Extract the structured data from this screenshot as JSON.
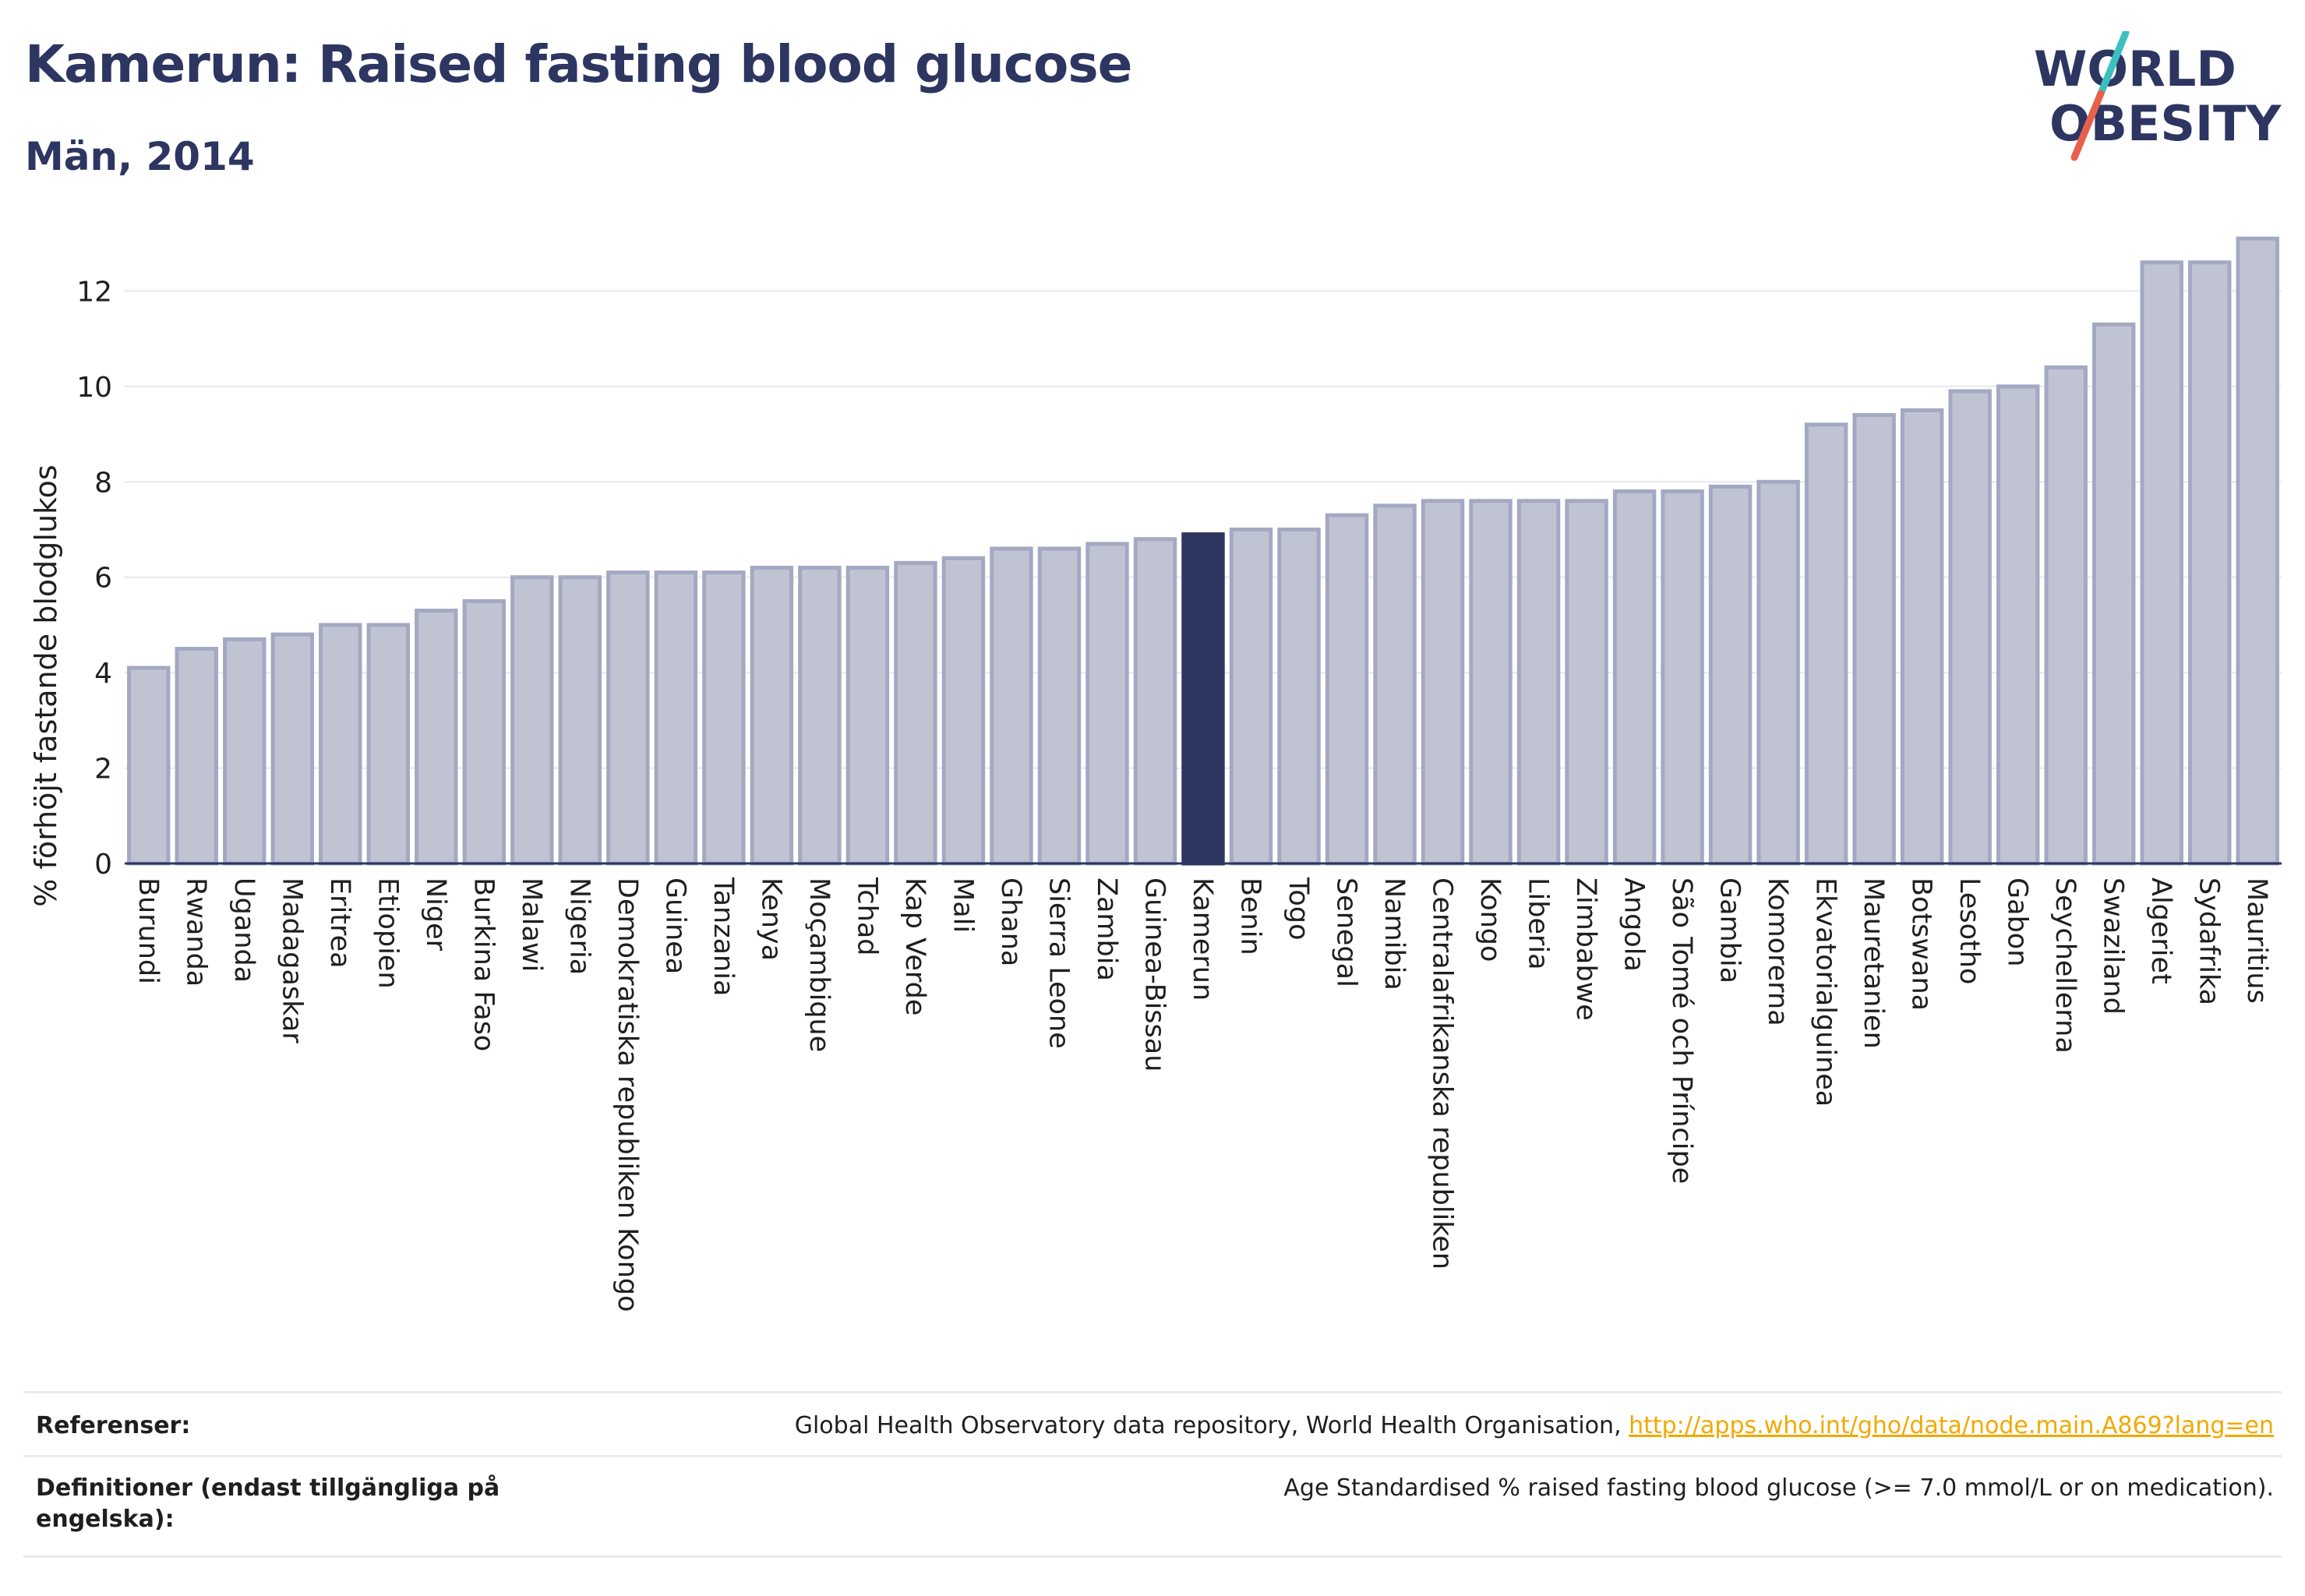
{
  "header": {
    "title": "Kamerun: Raised fasting blood glucose",
    "subtitle": "Män, 2014"
  },
  "logo": {
    "line1": "WORLD",
    "line2": "OBESITY",
    "text_color": "#2d3561",
    "slash_top_color": "#3cbfbf",
    "slash_bottom_color": "#e8604c"
  },
  "chart_data": {
    "type": "bar",
    "ylabel": "% förhöjt fastande blodglukos",
    "xlabel": "",
    "ylim": [
      0,
      13.2
    ],
    "yticks": [
      0,
      2,
      4,
      6,
      8,
      10,
      12
    ],
    "grid": true,
    "highlight": "Kamerun",
    "colors": {
      "bar": "#c0c4d2",
      "bar_border": "#a3a9c2",
      "highlight": "#2d3561",
      "grid": "#e6e8ef",
      "axis": "#2d3561"
    },
    "categories": [
      "Burundi",
      "Rwanda",
      "Uganda",
      "Madagaskar",
      "Eritrea",
      "Etiopien",
      "Niger",
      "Burkina Faso",
      "Malawi",
      "Nigeria",
      "Demokratiska republiken Kongo",
      "Guinea",
      "Tanzania",
      "Kenya",
      "Moçambique",
      "Tchad",
      "Kap Verde",
      "Mali",
      "Ghana",
      "Sierra Leone",
      "Zambia",
      "Guinea-Bissau",
      "Kamerun",
      "Benin",
      "Togo",
      "Senegal",
      "Namibia",
      "Centralafrikanska republiken",
      "Kongo",
      "Liberia",
      "Zimbabwe",
      "Angola",
      "São Tomé och Príncipe",
      "Gambia",
      "Komorerna",
      "Ekvatorialguinea",
      "Mauretanien",
      "Botswana",
      "Lesotho",
      "Gabon",
      "Seychellerna",
      "Swaziland",
      "Algeriet",
      "Sydafrika",
      "Mauritius"
    ],
    "values": [
      4.1,
      4.5,
      4.7,
      4.8,
      5.0,
      5.0,
      5.3,
      5.5,
      6.0,
      6.0,
      6.1,
      6.1,
      6.1,
      6.2,
      6.2,
      6.2,
      6.3,
      6.4,
      6.6,
      6.6,
      6.7,
      6.8,
      6.9,
      7.0,
      7.0,
      7.3,
      7.5,
      7.6,
      7.6,
      7.6,
      7.6,
      7.8,
      7.8,
      7.9,
      8.0,
      9.2,
      9.4,
      9.5,
      9.9,
      10.0,
      10.4,
      11.3,
      12.6,
      12.6,
      13.1
    ]
  },
  "references": {
    "refs_label": "Referenser:",
    "refs_text": "Global Health Observatory data repository, World Health Organisation, ",
    "refs_link": "http://apps.who.int/gho/data/node.main.A869?lang=en",
    "defs_label_line1": "Definitioner (endast tillgängliga på",
    "defs_label_line2": "engelska):",
    "defs_text": "Age Standardised % raised fasting blood glucose (>= 7.0 mmol/L or on medication)."
  }
}
